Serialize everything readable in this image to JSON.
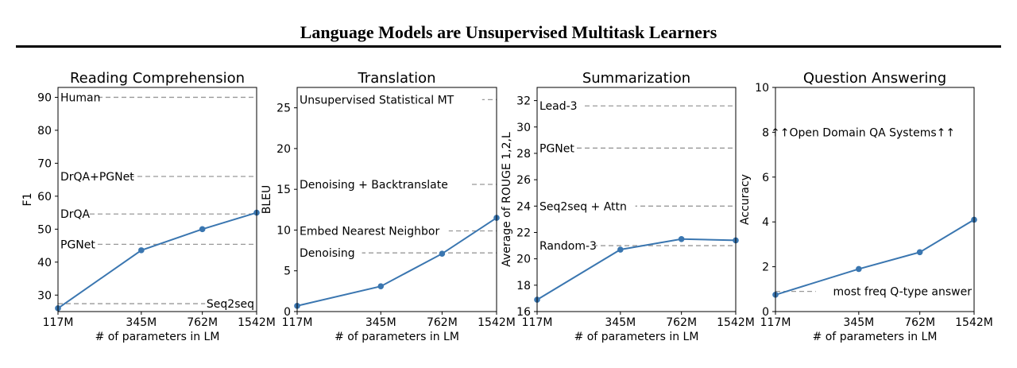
{
  "page_title": "Language Models are Unsupervised Multitask Learners",
  "colors": {
    "line": "#3a76b0",
    "reference": "#999999",
    "axis": "#000000"
  },
  "chart_data": [
    {
      "type": "line",
      "title": "Reading Comprehension",
      "xlabel": "# of parameters in LM",
      "ylabel": "F1",
      "x_categories": [
        "117M",
        "345M",
        "762M",
        "1542M"
      ],
      "x_log_values": [
        117,
        345,
        762,
        1542
      ],
      "ylim": [
        25,
        93
      ],
      "yticks": [
        30,
        40,
        50,
        60,
        70,
        80,
        90
      ],
      "series": [
        {
          "values": [
            26,
            43.6,
            50,
            55
          ]
        }
      ],
      "references": [
        {
          "label": "Human",
          "value": 90
        },
        {
          "label": "DrQA+PGNet",
          "value": 66
        },
        {
          "label": "DrQA",
          "value": 54.6
        },
        {
          "label": "PGNet",
          "value": 45.4
        },
        {
          "label": "Seq2seq",
          "value": 27.4,
          "label_align": "right"
        }
      ],
      "grid": false
    },
    {
      "type": "line",
      "title": "Translation",
      "xlabel": "# of parameters in LM",
      "ylabel": "BLEU",
      "x_categories": [
        "117M",
        "345M",
        "762M",
        "1542M"
      ],
      "x_log_values": [
        117,
        345,
        762,
        1542
      ],
      "ylim": [
        0,
        27.5
      ],
      "yticks": [
        0,
        5,
        10,
        15,
        20,
        25
      ],
      "series": [
        {
          "values": [
            0.7,
            3.1,
            7.1,
            11.5
          ]
        }
      ],
      "references": [
        {
          "label": "Unsupervised Statistical MT",
          "value": 26
        },
        {
          "label": "Denoising + Backtranslate",
          "value": 15.6
        },
        {
          "label": "Embed Nearest Neighbor",
          "value": 9.9
        },
        {
          "label": "Denoising",
          "value": 7.2
        }
      ],
      "grid": false
    },
    {
      "type": "line",
      "title": "Summarization",
      "xlabel": "# of parameters in LM",
      "ylabel": "Average of ROUGE 1,2,L",
      "x_categories": [
        "117M",
        "345M",
        "762M",
        "1542M"
      ],
      "x_log_values": [
        117,
        345,
        762,
        1542
      ],
      "ylim": [
        16,
        33
      ],
      "yticks": [
        16,
        18,
        20,
        22,
        24,
        26,
        28,
        30,
        32
      ],
      "series": [
        {
          "values": [
            16.9,
            20.7,
            21.5,
            21.4
          ]
        }
      ],
      "references": [
        {
          "label": "Lead-3",
          "value": 31.6
        },
        {
          "label": "PGNet",
          "value": 28.4
        },
        {
          "label": "Seq2seq + Attn",
          "value": 24
        },
        {
          "label": "Random-3",
          "value": 21
        }
      ],
      "grid": false
    },
    {
      "type": "line",
      "title": "Question Answering",
      "xlabel": "# of parameters in LM",
      "ylabel": "Accuracy",
      "x_categories": [
        "117M",
        "345M",
        "762M",
        "1542M"
      ],
      "x_log_values": [
        117,
        345,
        762,
        1542
      ],
      "ylim": [
        0,
        10
      ],
      "yticks": [
        0,
        2,
        4,
        6,
        8,
        10
      ],
      "series": [
        {
          "values": [
            0.75,
            1.9,
            2.65,
            4.1
          ]
        }
      ],
      "references": [
        {
          "label": "most freq Q-type answer",
          "value": 0.9,
          "label_align": "right"
        }
      ],
      "annotations": [
        {
          "text": "↑↑Open Domain QA Systems↑↑",
          "value": 8
        }
      ],
      "grid": false
    }
  ]
}
